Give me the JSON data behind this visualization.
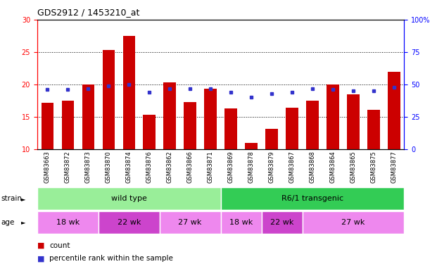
{
  "title": "GDS2912 / 1453210_at",
  "samples": [
    "GSM83663",
    "GSM83872",
    "GSM83873",
    "GSM83870",
    "GSM83874",
    "GSM83876",
    "GSM83862",
    "GSM83866",
    "GSM83871",
    "GSM83869",
    "GSM83878",
    "GSM83879",
    "GSM83867",
    "GSM83868",
    "GSM83864",
    "GSM83865",
    "GSM83875",
    "GSM83877"
  ],
  "counts": [
    17.2,
    17.5,
    20.0,
    25.3,
    27.5,
    15.3,
    20.3,
    17.3,
    19.3,
    16.3,
    11.0,
    13.1,
    16.4,
    17.5,
    20.0,
    18.5,
    16.1,
    22.0
  ],
  "percentile": [
    46,
    46,
    47,
    49,
    50,
    44,
    47,
    47,
    47,
    44,
    40,
    43,
    44,
    47,
    46,
    45,
    45,
    48
  ],
  "ylim_left": [
    10,
    30
  ],
  "ylim_right": [
    0,
    100
  ],
  "yticks_left": [
    10,
    15,
    20,
    25,
    30
  ],
  "yticks_right": [
    0,
    25,
    50,
    75,
    100
  ],
  "bar_color": "#cc0000",
  "dot_color": "#3333cc",
  "plot_bg": "#ffffff",
  "xtick_bg": "#c8c8c8",
  "strain_colors": [
    "#99ee99",
    "#33cc55"
  ],
  "age_colors_pattern": [
    "#ee88ee",
    "#cc44cc",
    "#ee88ee",
    "#ee88ee",
    "#cc44cc",
    "#ee88ee"
  ],
  "strain_groups": [
    {
      "label": "wild type",
      "start": 0,
      "end": 9
    },
    {
      "label": "R6/1 transgenic",
      "start": 9,
      "end": 18
    }
  ],
  "age_groups": [
    {
      "label": "18 wk",
      "start": 0,
      "end": 3
    },
    {
      "label": "22 wk",
      "start": 3,
      "end": 6
    },
    {
      "label": "27 wk",
      "start": 6,
      "end": 9
    },
    {
      "label": "18 wk",
      "start": 9,
      "end": 11
    },
    {
      "label": "22 wk",
      "start": 11,
      "end": 13
    },
    {
      "label": "27 wk",
      "start": 13,
      "end": 18
    }
  ],
  "legend_count_label": "count",
  "legend_pct_label": "percentile rank within the sample",
  "strain_label": "strain",
  "age_label": "age",
  "figsize": [
    6.21,
    3.75
  ],
  "dpi": 100
}
